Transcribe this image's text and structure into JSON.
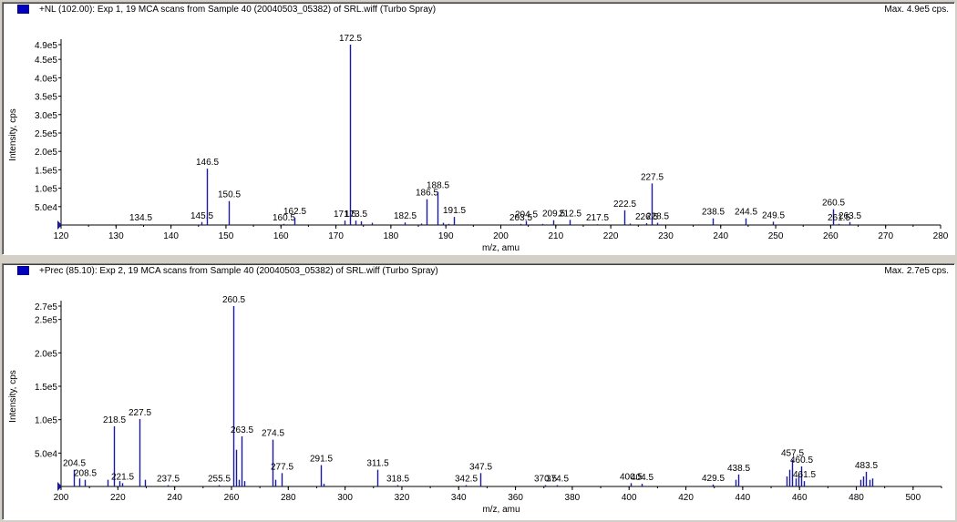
{
  "colors": {
    "series": "#1a1aa0",
    "panel_bg": "#ffffff",
    "window_bg": "#d4d0c8"
  },
  "chart_data": [
    {
      "type": "bar",
      "title": "+NL (102.00): Exp 1, 19 MCA scans from Sample 40 (20040503_05382) of SRL.wiff (Turbo Spray)",
      "max_label": "Max. 4.9e5 cps.",
      "xlabel": "m/z, amu",
      "ylabel": "Intensity, cps",
      "xlim": [
        120,
        280
      ],
      "ylim": [
        0,
        490000
      ],
      "x_ticks": [
        "120",
        "130",
        "140",
        "150",
        "160",
        "170",
        "180",
        "190",
        "200",
        "210",
        "220",
        "230",
        "240",
        "250",
        "260",
        "270",
        "280"
      ],
      "y_ticks": [
        {
          "label": "5.0e4",
          "value": 50000
        },
        {
          "label": "1.0e5",
          "value": 100000
        },
        {
          "label": "1.5e5",
          "value": 150000
        },
        {
          "label": "2.0e5",
          "value": 200000
        },
        {
          "label": "2.5e5",
          "value": 250000
        },
        {
          "label": "3.0e5",
          "value": 300000
        },
        {
          "label": "3.5e5",
          "value": 350000
        },
        {
          "label": "4.0e5",
          "value": 400000
        },
        {
          "label": "4.5e5",
          "value": 450000
        },
        {
          "label": "4.9e5",
          "value": 490000
        }
      ],
      "peaks": [
        {
          "x": 134.5,
          "y": 2000,
          "label": "134.5"
        },
        {
          "x": 145.5,
          "y": 8000,
          "label": "145.5"
        },
        {
          "x": 146.5,
          "y": 153000,
          "label": "146.5"
        },
        {
          "x": 150.5,
          "y": 65000,
          "label": "150.5"
        },
        {
          "x": 160.5,
          "y": 3000,
          "label": "160.5"
        },
        {
          "x": 162.5,
          "y": 20000,
          "label": "162.5"
        },
        {
          "x": 171.5,
          "y": 12000,
          "label": "171.5"
        },
        {
          "x": 172.5,
          "y": 490000,
          "label": "172.5"
        },
        {
          "x": 173.5,
          "y": 12000,
          "label": "173.5"
        },
        {
          "x": 174.5,
          "y": 10000,
          "label": ""
        },
        {
          "x": 176.5,
          "y": 6000,
          "label": ""
        },
        {
          "x": 182.5,
          "y": 7000,
          "label": "182.5"
        },
        {
          "x": 185.5,
          "y": 4000,
          "label": ""
        },
        {
          "x": 186.5,
          "y": 70000,
          "label": "186.5"
        },
        {
          "x": 188.5,
          "y": 90000,
          "label": "188.5"
        },
        {
          "x": 189.5,
          "y": 6000,
          "label": ""
        },
        {
          "x": 190.5,
          "y": 3000,
          "label": ""
        },
        {
          "x": 191.5,
          "y": 22000,
          "label": "191.5"
        },
        {
          "x": 203.5,
          "y": 3000,
          "label": "203.5"
        },
        {
          "x": 204.5,
          "y": 11000,
          "label": "204.5"
        },
        {
          "x": 207.5,
          "y": 3000,
          "label": ""
        },
        {
          "x": 209.5,
          "y": 13000,
          "label": "209.5"
        },
        {
          "x": 212.5,
          "y": 14000,
          "label": "212.5"
        },
        {
          "x": 217.5,
          "y": 2000,
          "label": "217.5"
        },
        {
          "x": 222.5,
          "y": 40000,
          "label": "222.5"
        },
        {
          "x": 223.5,
          "y": 4000,
          "label": ""
        },
        {
          "x": 226.5,
          "y": 5000,
          "label": "226.5"
        },
        {
          "x": 227.5,
          "y": 113000,
          "label": "227.5"
        },
        {
          "x": 228.5,
          "y": 6000,
          "label": "228.5"
        },
        {
          "x": 238.5,
          "y": 18000,
          "label": "238.5"
        },
        {
          "x": 244.5,
          "y": 18000,
          "label": "244.5"
        },
        {
          "x": 249.5,
          "y": 9000,
          "label": "249.5"
        },
        {
          "x": 260.5,
          "y": 43000,
          "label": "260.5"
        },
        {
          "x": 261.5,
          "y": 3000,
          "label": "261.5"
        },
        {
          "x": 263.5,
          "y": 8000,
          "label": "263.5"
        }
      ]
    },
    {
      "type": "bar",
      "title": "+Prec (85.10): Exp 2, 19 MCA scans from Sample 40 (20040503_05382) of SRL.wiff (Turbo Spray)",
      "max_label": "Max. 2.7e5 cps.",
      "xlabel": "m/z, amu",
      "ylabel": "Intensity, cps",
      "xlim": [
        200,
        510
      ],
      "ylim": [
        0,
        270000
      ],
      "x_ticks": [
        "200",
        "220",
        "240",
        "260",
        "280",
        "300",
        "320",
        "340",
        "360",
        "380",
        "400",
        "420",
        "440",
        "460",
        "480",
        "500"
      ],
      "y_ticks": [
        {
          "label": "5.0e4",
          "value": 50000
        },
        {
          "label": "1.0e5",
          "value": 100000
        },
        {
          "label": "1.5e5",
          "value": 150000
        },
        {
          "label": "2.0e5",
          "value": 200000
        },
        {
          "label": "2.5e5",
          "value": 250000
        },
        {
          "label": "2.7e5",
          "value": 270000
        }
      ],
      "peaks": [
        {
          "x": 204.5,
          "y": 25000,
          "label": "204.5"
        },
        {
          "x": 206.5,
          "y": 12000,
          "label": ""
        },
        {
          "x": 208.5,
          "y": 10000,
          "label": "208.5"
        },
        {
          "x": 216.5,
          "y": 10000,
          "label": ""
        },
        {
          "x": 218.5,
          "y": 90000,
          "label": "218.5"
        },
        {
          "x": 220.5,
          "y": 8000,
          "label": ""
        },
        {
          "x": 221.5,
          "y": 5000,
          "label": "221.5"
        },
        {
          "x": 227.5,
          "y": 101000,
          "label": "227.5"
        },
        {
          "x": 229.5,
          "y": 10000,
          "label": ""
        },
        {
          "x": 237.5,
          "y": 2000,
          "label": "237.5"
        },
        {
          "x": 255.5,
          "y": 2000,
          "label": "255.5"
        },
        {
          "x": 260.5,
          "y": 270000,
          "label": "260.5"
        },
        {
          "x": 261.5,
          "y": 55000,
          "label": ""
        },
        {
          "x": 262.5,
          "y": 10000,
          "label": ""
        },
        {
          "x": 263.5,
          "y": 75000,
          "label": "263.5"
        },
        {
          "x": 264.5,
          "y": 8000,
          "label": ""
        },
        {
          "x": 274.5,
          "y": 70000,
          "label": "274.5"
        },
        {
          "x": 275.5,
          "y": 10000,
          "label": ""
        },
        {
          "x": 277.5,
          "y": 20000,
          "label": "277.5"
        },
        {
          "x": 291.5,
          "y": 32000,
          "label": "291.5"
        },
        {
          "x": 292.5,
          "y": 4000,
          "label": ""
        },
        {
          "x": 311.5,
          "y": 25000,
          "label": "311.5"
        },
        {
          "x": 318.5,
          "y": 2000,
          "label": "318.5"
        },
        {
          "x": 342.5,
          "y": 2000,
          "label": "342.5"
        },
        {
          "x": 347.5,
          "y": 20000,
          "label": "347.5"
        },
        {
          "x": 370.5,
          "y": 2000,
          "label": "370.5"
        },
        {
          "x": 374.5,
          "y": 2000,
          "label": "374.5"
        },
        {
          "x": 400.5,
          "y": 5000,
          "label": "400.5"
        },
        {
          "x": 404.5,
          "y": 4000,
          "label": "404.5"
        },
        {
          "x": 429.5,
          "y": 3000,
          "label": "429.5"
        },
        {
          "x": 437.5,
          "y": 10000,
          "label": ""
        },
        {
          "x": 438.5,
          "y": 18000,
          "label": "438.5"
        },
        {
          "x": 455.5,
          "y": 15000,
          "label": ""
        },
        {
          "x": 456.5,
          "y": 25000,
          "label": ""
        },
        {
          "x": 457.5,
          "y": 40000,
          "label": "457.5"
        },
        {
          "x": 458.5,
          "y": 12000,
          "label": ""
        },
        {
          "x": 459.5,
          "y": 18000,
          "label": ""
        },
        {
          "x": 460.5,
          "y": 30000,
          "label": "460.5"
        },
        {
          "x": 461.5,
          "y": 8000,
          "label": "461.5"
        },
        {
          "x": 481.5,
          "y": 10000,
          "label": ""
        },
        {
          "x": 482.5,
          "y": 15000,
          "label": ""
        },
        {
          "x": 483.5,
          "y": 22000,
          "label": "483.5"
        },
        {
          "x": 484.5,
          "y": 10000,
          "label": ""
        },
        {
          "x": 485.5,
          "y": 12000,
          "label": ""
        }
      ]
    }
  ]
}
